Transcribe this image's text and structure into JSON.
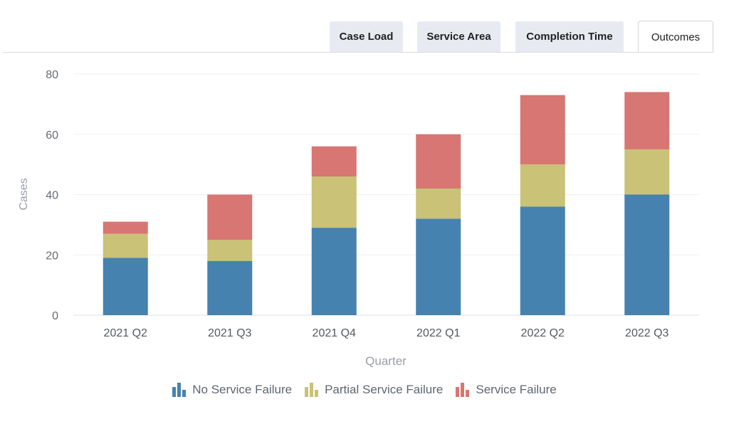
{
  "tabs": [
    {
      "label": "Case Load",
      "active": false
    },
    {
      "label": "Service Area",
      "active": false
    },
    {
      "label": "Completion Time",
      "active": false
    },
    {
      "label": "Outcomes",
      "active": true
    }
  ],
  "legend": [
    {
      "label": "No Service Failure",
      "color": "#4682b0",
      "icon": "bar-chart-icon"
    },
    {
      "label": "Partial Service Failure",
      "color": "#c9c277",
      "icon": "bar-chart-icon"
    },
    {
      "label": "Service Failure",
      "color": "#d77672",
      "icon": "bar-chart-icon"
    }
  ],
  "chart_data": {
    "type": "bar",
    "stacked": true,
    "categories": [
      "2021 Q2",
      "2021 Q3",
      "2021 Q4",
      "2022 Q1",
      "2022 Q2",
      "2022 Q3"
    ],
    "series": [
      {
        "name": "No Service Failure",
        "color": "#4682b0",
        "values": [
          19,
          18,
          29,
          32,
          36,
          40
        ]
      },
      {
        "name": "Partial Service Failure",
        "color": "#c9c277",
        "values": [
          8,
          7,
          17,
          10,
          14,
          15
        ]
      },
      {
        "name": "Service Failure",
        "color": "#d77672",
        "values": [
          4,
          15,
          10,
          18,
          23,
          19
        ]
      }
    ],
    "xlabel": "Quarter",
    "ylabel": "Cases",
    "ylim": [
      0,
      80
    ],
    "yticks": [
      0,
      20,
      40,
      60,
      80
    ],
    "grid": true,
    "legend_position": "bottom"
  }
}
